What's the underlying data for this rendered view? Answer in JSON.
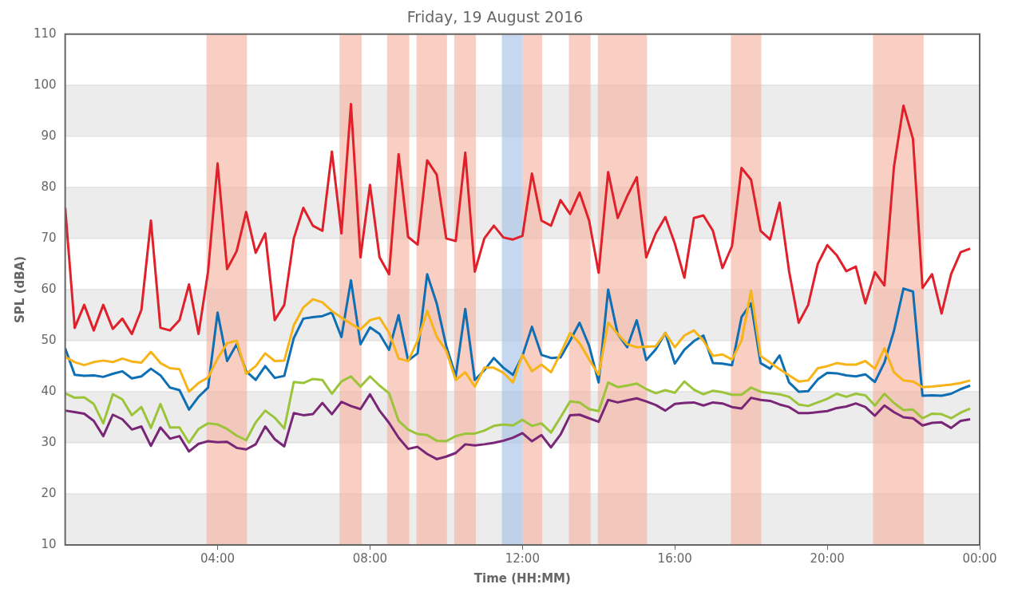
{
  "chart_data": {
    "type": "line",
    "title": "Friday, 19 August 2016",
    "xlabel": "Time (HH:MM)",
    "ylabel": "SPL (dBA)",
    "x": [
      0,
      0.25,
      0.5,
      0.75,
      1,
      1.25,
      1.5,
      1.75,
      2,
      2.25,
      2.5,
      2.75,
      3,
      3.25,
      3.5,
      3.75,
      4,
      4.25,
      4.5,
      4.75,
      5,
      5.25,
      5.5,
      5.75,
      6,
      6.25,
      6.5,
      6.75,
      7,
      7.25,
      7.5,
      7.75,
      8,
      8.25,
      8.5,
      8.75,
      9,
      9.25,
      9.5,
      9.75,
      10,
      10.25,
      10.5,
      10.75,
      11,
      11.25,
      11.5,
      11.75,
      12,
      12.25,
      12.5,
      12.75,
      13,
      13.25,
      13.5,
      13.75,
      14,
      14.25,
      14.5,
      14.75,
      15,
      15.25,
      15.5,
      15.75,
      16,
      16.25,
      16.5,
      16.75,
      17,
      17.25,
      17.5,
      17.75,
      18,
      18.25,
      18.5,
      18.75,
      19,
      19.25,
      19.5,
      19.75,
      20,
      20.25,
      20.5,
      20.75,
      21,
      21.25,
      21.5,
      21.75,
      22,
      22.25,
      22.5,
      22.75,
      23,
      23.25,
      23.5,
      23.75
    ],
    "series": [
      {
        "color": "#e0202a",
        "values": [
          76,
          52.5,
          57,
          52,
          57,
          52.3,
          54.3,
          51.3,
          56,
          73.5,
          52.5,
          52,
          54,
          61,
          51.3,
          63.5,
          84.7,
          64,
          67.5,
          75.2,
          67.2,
          71,
          54,
          57,
          70,
          76,
          72.5,
          71.5,
          87,
          71,
          96.3,
          66.3,
          80.5,
          66.3,
          63,
          86.5,
          70.3,
          68.8,
          85.3,
          82.5,
          70,
          69.5,
          86.8,
          63.5,
          70,
          72.5,
          70.2,
          69.8,
          70.5,
          82.7,
          73.5,
          72.5,
          77.5,
          74.8,
          79,
          73.5,
          63.3,
          83,
          74,
          78.3,
          82,
          66.3,
          71,
          74.2,
          69,
          62.3,
          74,
          74.5,
          71.5,
          64.2,
          68.5,
          83.8,
          81.5,
          71.5,
          69.8,
          77,
          63.5,
          53.5,
          57,
          65,
          68.7,
          66.7,
          63.6,
          64.5,
          57.3,
          63.4,
          60.8,
          84,
          96,
          89.5,
          60.3,
          63,
          55.3,
          63,
          67.3,
          68
        ]
      },
      {
        "color": "#f7b418",
        "values": [
          46.8,
          45.8,
          45.2,
          45.8,
          46.1,
          45.8,
          46.5,
          45.9,
          45.7,
          47.8,
          45.6,
          44.6,
          44.4,
          40,
          41.7,
          42.8,
          46.5,
          49.5,
          50,
          43.5,
          45,
          47.5,
          46,
          46.1,
          53,
          56.5,
          58.1,
          57.5,
          55.8,
          54.5,
          53.3,
          52.2,
          54,
          54.5,
          51.5,
          46.5,
          46,
          50,
          55.8,
          50.8,
          48,
          42.3,
          43.8,
          41,
          44.7,
          44.7,
          43.7,
          41.8,
          47.2,
          44,
          45.3,
          43.8,
          47.5,
          51.5,
          49.5,
          46.3,
          43.3,
          53.5,
          51.3,
          49.3,
          48.7,
          48.8,
          48.9,
          51.5,
          48.7,
          51,
          52,
          50,
          47,
          47.3,
          46.3,
          50,
          59.8,
          47,
          45.7,
          44.4,
          43.2,
          42,
          42.2,
          44.6,
          45,
          45.6,
          45.3,
          45.3,
          46,
          44.5,
          48.5,
          43.8,
          42.2,
          42,
          40.9,
          41,
          41.2,
          41.4,
          41.7,
          42.2
        ]
      },
      {
        "color": "#0e6fb5",
        "values": [
          48.5,
          43.3,
          43.1,
          43.2,
          42.9,
          43.5,
          44,
          42.6,
          43,
          44.5,
          43.2,
          40.8,
          40.3,
          36.5,
          39,
          40.8,
          55.5,
          46,
          49.3,
          44,
          42.3,
          45,
          42.7,
          43.1,
          50.5,
          54.3,
          54.6,
          54.8,
          55.5,
          50.7,
          61.8,
          49.3,
          52.6,
          51.3,
          48.2,
          55,
          46.1,
          47.5,
          63,
          57.3,
          49,
          43,
          56.2,
          42.3,
          44.2,
          46.6,
          44.7,
          43.3,
          47,
          52.7,
          47.2,
          46.6,
          46.7,
          50,
          53.5,
          49,
          41.8,
          60,
          51.3,
          48.7,
          54,
          46.2,
          48.3,
          51.5,
          45.5,
          48.2,
          49.9,
          51,
          45.6,
          45.5,
          45.2,
          54.6,
          57.3,
          45.6,
          44.5,
          47.1,
          41.8,
          40,
          40.1,
          42.4,
          43.7,
          43.6,
          43.2,
          43,
          43.4,
          41.9,
          45.7,
          51.9,
          60.2,
          59.6,
          39.2,
          39.3,
          39.2,
          39.6,
          40.5,
          41.2
        ]
      },
      {
        "color": "#9bc43a",
        "values": [
          39.7,
          38.8,
          38.9,
          37.6,
          33.8,
          39.5,
          38.5,
          35.4,
          37,
          32.9,
          37.6,
          33,
          33,
          30,
          32.7,
          33.8,
          33.6,
          32.7,
          31.4,
          30.5,
          34,
          36.3,
          34.9,
          32.8,
          41.9,
          41.7,
          42.5,
          42.3,
          39.6,
          42,
          43,
          41,
          43,
          41.2,
          39.7,
          34.3,
          32.6,
          31.7,
          31.5,
          30.4,
          30.3,
          31.3,
          31.8,
          31.8,
          32.4,
          33.3,
          33.6,
          33.4,
          34.5,
          33.3,
          33.8,
          32,
          35,
          38.1,
          37.9,
          36.6,
          36.2,
          41.8,
          40.9,
          41.2,
          41.6,
          40.5,
          39.7,
          40.3,
          39.8,
          42,
          40.4,
          39.5,
          40.2,
          39.9,
          39.4,
          39.4,
          40.8,
          40,
          39.7,
          39.5,
          39,
          37.5,
          37.2,
          37.9,
          38.6,
          39.6,
          39,
          39.6,
          39.3,
          37.3,
          39.6,
          37.8,
          36.4,
          36.5,
          34.8,
          35.7,
          35.6,
          34.8,
          35.9,
          36.7
        ]
      },
      {
        "color": "#7a2677",
        "values": [
          36.3,
          36,
          35.7,
          34.3,
          31.3,
          35.5,
          34.6,
          32.6,
          33.2,
          29.4,
          33,
          30.8,
          31.3,
          28.3,
          29.8,
          30.3,
          30.1,
          30.2,
          29,
          28.7,
          29.7,
          33.2,
          30.7,
          29.3,
          35.8,
          35.4,
          35.6,
          37.8,
          35.6,
          38,
          37.2,
          36.6,
          39.5,
          36.3,
          33.9,
          31,
          28.8,
          29.2,
          27.8,
          26.8,
          27.3,
          28,
          29.7,
          29.5,
          29.7,
          30,
          30.4,
          31,
          31.9,
          30.3,
          31.5,
          29.1,
          31.6,
          35.4,
          35.5,
          34.8,
          34.1,
          38.4,
          37.9,
          38.3,
          38.7,
          38.1,
          37.4,
          36.3,
          37.6,
          37.8,
          37.9,
          37.3,
          37.9,
          37.7,
          37,
          36.7,
          38.8,
          38.4,
          38.2,
          37.5,
          37,
          35.8,
          35.8,
          36,
          36.2,
          36.8,
          37.1,
          37.7,
          37,
          35.3,
          37.3,
          36,
          35,
          34.8,
          33.4,
          33.9,
          34,
          32.9,
          34.3,
          34.6
        ]
      }
    ],
    "bands": [
      {
        "axis": "x",
        "from": 3.71,
        "to": 4.77,
        "color": "#f4b5a2"
      },
      {
        "axis": "x",
        "from": 7.2,
        "to": 7.78,
        "color": "#f4b5a2"
      },
      {
        "axis": "x",
        "from": 8.45,
        "to": 9.03,
        "color": "#f4b5a2"
      },
      {
        "axis": "x",
        "from": 9.22,
        "to": 10.02,
        "color": "#f4b5a2"
      },
      {
        "axis": "x",
        "from": 10.21,
        "to": 10.78,
        "color": "#f4b5a2"
      },
      {
        "axis": "x",
        "from": 11.46,
        "to": 12.01,
        "color": "#a8c3e8"
      },
      {
        "axis": "x",
        "from": 12.01,
        "to": 12.52,
        "color": "#f4b5a2"
      },
      {
        "axis": "x",
        "from": 13.22,
        "to": 13.79,
        "color": "#f4b5a2"
      },
      {
        "axis": "x",
        "from": 13.98,
        "to": 15.27,
        "color": "#f4b5a2"
      },
      {
        "axis": "x",
        "from": 17.47,
        "to": 18.27,
        "color": "#f4b5a2"
      },
      {
        "axis": "x",
        "from": 21.2,
        "to": 22.53,
        "color": "#f4b5a2"
      }
    ],
    "xlim": [
      0,
      24
    ],
    "xticks": [
      {
        "value": 4,
        "label": "04:00"
      },
      {
        "value": 8,
        "label": "08:00"
      },
      {
        "value": 12,
        "label": "12:00"
      },
      {
        "value": 16,
        "label": "16:00"
      },
      {
        "value": 20,
        "label": "20:00"
      },
      {
        "value": 24,
        "label": "00:00"
      }
    ],
    "ylim": [
      10,
      110
    ],
    "yticks": [
      10,
      20,
      30,
      40,
      50,
      60,
      70,
      80,
      90,
      100,
      110
    ],
    "grid": "y",
    "legend": false,
    "marker": "none",
    "line_style": "solid"
  }
}
